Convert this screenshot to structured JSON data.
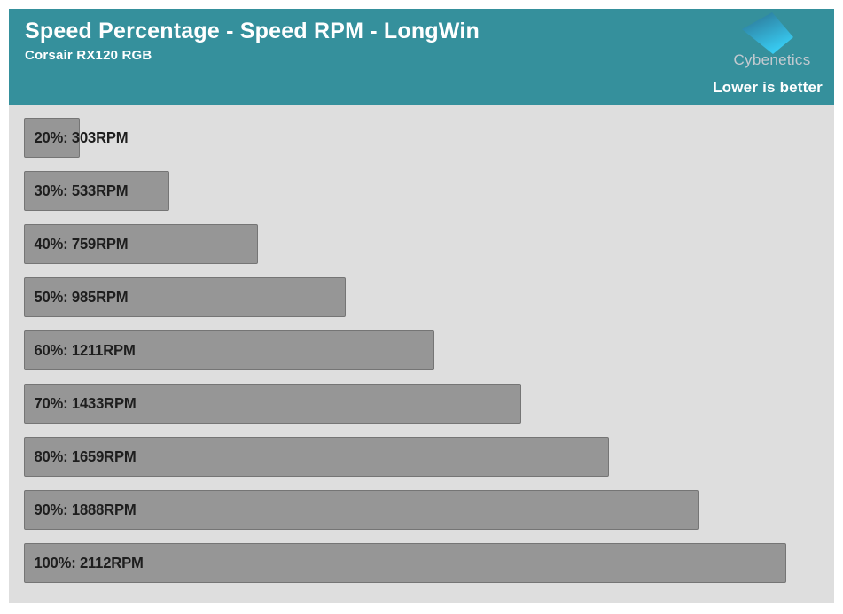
{
  "header": {
    "title": "Speed Percentage - Speed RPM - LongWin",
    "subtitle": "Corsair RX120 RGB",
    "brand": "Cybenetics",
    "note": "Lower is better",
    "background_color": "#35909c",
    "logo_gradient": [
      "#2b6f8e",
      "#38cdf4"
    ]
  },
  "chart_data": {
    "type": "bar",
    "orientation": "horizontal",
    "title": "Speed Percentage - Speed RPM - LongWin",
    "subtitle": "Corsair RX120 RGB",
    "note": "Lower is better",
    "unit": "RPM",
    "categories": [
      "20%",
      "30%",
      "40%",
      "50%",
      "60%",
      "70%",
      "80%",
      "90%",
      "100%"
    ],
    "values": [
      303,
      533,
      759,
      985,
      1211,
      1433,
      1659,
      1888,
      2112
    ],
    "points": [
      {
        "percent": "20%",
        "rpm": 303,
        "label": "20%: 303RPM"
      },
      {
        "percent": "30%",
        "rpm": 533,
        "label": "30%: 533RPM"
      },
      {
        "percent": "40%",
        "rpm": 759,
        "label": "40%: 759RPM"
      },
      {
        "percent": "50%",
        "rpm": 985,
        "label": "50%: 985RPM"
      },
      {
        "percent": "60%",
        "rpm": 1211,
        "label": "60%: 1211RPM"
      },
      {
        "percent": "70%",
        "rpm": 1433,
        "label": "70%: 1433RPM"
      },
      {
        "percent": "80%",
        "rpm": 1659,
        "label": "80%: 1659RPM"
      },
      {
        "percent": "90%",
        "rpm": 1888,
        "label": "90%: 1888RPM"
      },
      {
        "percent": "100%",
        "rpm": 2112,
        "label": "100%: 2112RPM"
      }
    ],
    "axis": {
      "min": 160,
      "max": 2235
    },
    "grid": false,
    "legend": false,
    "bar_color": "#969696",
    "bar_border_color": "#757575",
    "label_color": "#1e1e1e",
    "background": "#dedede"
  }
}
